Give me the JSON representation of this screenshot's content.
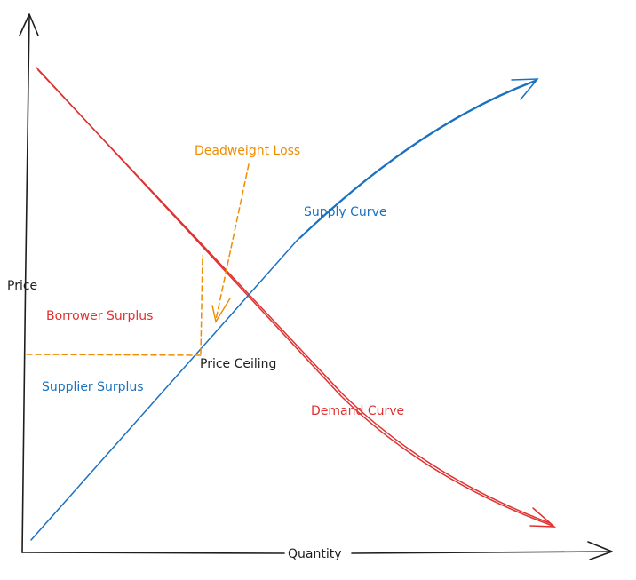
{
  "labels": {
    "y_axis": "Price",
    "x_axis": "Quantity",
    "deadweight_loss": "Deadweight Loss",
    "supply_curve": "Supply Curve",
    "borrower_surplus": "Borrower Surplus",
    "price_ceiling": "Price Ceiling",
    "supplier_surplus": "Supplier Surplus",
    "demand_curve": "Demand Curve"
  },
  "colors": {
    "axis": "#1e1e1e",
    "demand": "#e03131",
    "supply": "#1971c2",
    "annotation": "#f08c00",
    "text": "#1e1e1e"
  }
}
